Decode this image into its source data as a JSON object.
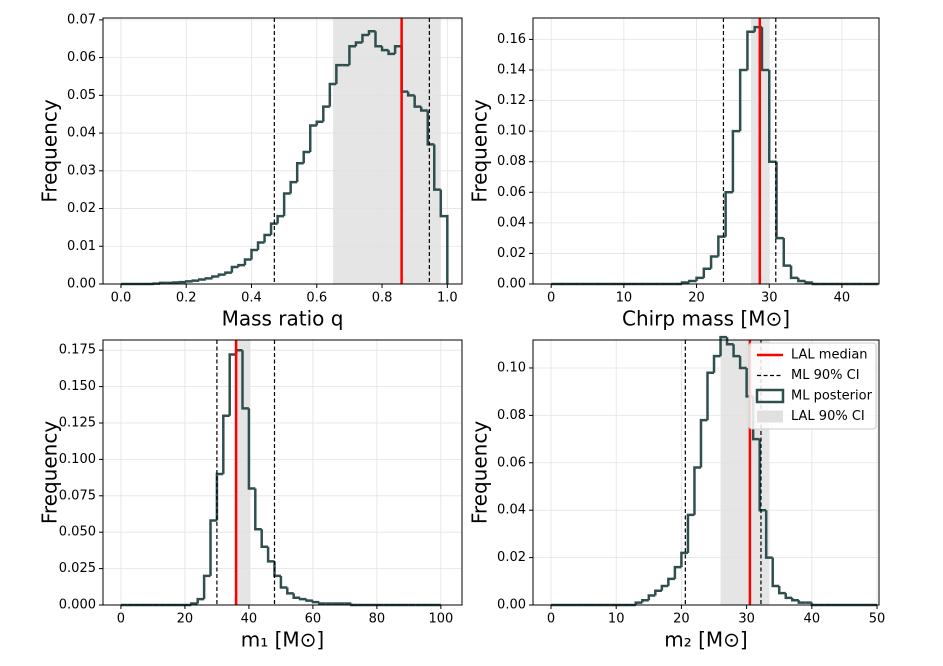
{
  "chart_data": [
    {
      "type": "histogram",
      "xlabel": "Mass ratio q",
      "ylabel": "Frequency",
      "bins": [
        0.0,
        0.02,
        0.04,
        0.06,
        0.08,
        0.1,
        0.12,
        0.14,
        0.16,
        0.18,
        0.2,
        0.22,
        0.24,
        0.26,
        0.28,
        0.3,
        0.32,
        0.34,
        0.36,
        0.38,
        0.4,
        0.42,
        0.44,
        0.46,
        0.48,
        0.5,
        0.52,
        0.54,
        0.56,
        0.58,
        0.6,
        0.62,
        0.64,
        0.66,
        0.68,
        0.7,
        0.72,
        0.74,
        0.76,
        0.78,
        0.8,
        0.82,
        0.84,
        0.86,
        0.88,
        0.9,
        0.92,
        0.94,
        0.96,
        0.98,
        1.0
      ],
      "counts": [
        0,
        0,
        0,
        0,
        0,
        0.0001,
        0.0003,
        0.0003,
        0.0004,
        0.0005,
        0.0007,
        0.0009,
        0.0012,
        0.0015,
        0.002,
        0.0025,
        0.003,
        0.0045,
        0.005,
        0.0065,
        0.009,
        0.011,
        0.013,
        0.016,
        0.018,
        0.024,
        0.027,
        0.032,
        0.035,
        0.042,
        0.043,
        0.047,
        0.053,
        0.058,
        0.058,
        0.063,
        0.064,
        0.066,
        0.067,
        0.063,
        0.062,
        0.061,
        0.063,
        0.051,
        0.05,
        0.047,
        0.046,
        0.037,
        0.025,
        0.018
      ],
      "color": "#2f4f4f",
      "median": 0.86,
      "median_color": "#ff0000",
      "ml_ci": [
        0.47,
        0.945
      ],
      "ml_ci_color": "#000000",
      "lal_ci": [
        0.65,
        0.98
      ],
      "lal_ci_color": "#e0e0e0",
      "xlim": [
        -0.055,
        1.045
      ],
      "ylim": [
        0,
        0.0705
      ],
      "xticks": [
        {
          "value": 0,
          "label": "0.0"
        },
        0.2,
        0.4,
        0.6,
        0.8,
        {
          "value": 1,
          "label": "1.0"
        }
      ],
      "yticks": [
        {
          "value": 0,
          "label": "0.00"
        },
        0.01,
        0.02,
        0.03,
        0.04,
        0.05,
        0.06,
        0.07
      ],
      "grid": true
    },
    {
      "type": "histogram",
      "xlabel": "Chirp mass [M⊙]",
      "ylabel": "Frequency",
      "bins": [
        0,
        1,
        2,
        3,
        4,
        5,
        6,
        7,
        8,
        9,
        10,
        11,
        12,
        13,
        14,
        15,
        16,
        17,
        18,
        19,
        20,
        21,
        22,
        23,
        24,
        25,
        26,
        27,
        28,
        29,
        30,
        31,
        32,
        33,
        34,
        35,
        36,
        37,
        38,
        39,
        40,
        41,
        42,
        43,
        44,
        45
      ],
      "counts": [
        0,
        0,
        0,
        0,
        0,
        0,
        0,
        0,
        0,
        0,
        0,
        0,
        0,
        0,
        0,
        0,
        0,
        0,
        0.001,
        0.002,
        0.004,
        0.01,
        0.018,
        0.031,
        0.06,
        0.1,
        0.14,
        0.165,
        0.168,
        0.14,
        0.08,
        0.03,
        0.012,
        0.004,
        0.002,
        0.001,
        0,
        0,
        0,
        0,
        0,
        0,
        0,
        0,
        0
      ],
      "color": "#2f4f4f",
      "median": 28.7,
      "median_color": "#ff0000",
      "ml_ci": [
        23.7,
        30.9
      ],
      "ml_ci_color": "#000000",
      "lal_ci": [
        27.5,
        30
      ],
      "lal_ci_color": "#e0e0e0",
      "xlim": [
        -2.5,
        45.1
      ],
      "ylim": [
        0,
        0.174
      ],
      "xticks": [
        0,
        10,
        20,
        30,
        40
      ],
      "yticks": [
        {
          "value": 0,
          "label": "0.00"
        },
        0.02,
        0.04,
        0.06,
        0.08,
        {
          "value": 0.1,
          "label": "0.10"
        },
        0.12,
        0.14,
        0.16
      ],
      "grid": true
    },
    {
      "type": "histogram",
      "xlabel": "m₁ [M⊙]",
      "ylabel": "Frequency",
      "bins": [
        0,
        2,
        4,
        6,
        8,
        10,
        12,
        14,
        16,
        18,
        20,
        22,
        24,
        26,
        28,
        30,
        32,
        34,
        36,
        38,
        40,
        42,
        44,
        46,
        48,
        50,
        52,
        54,
        56,
        58,
        60,
        62,
        64,
        66,
        68,
        70,
        72,
        74,
        76,
        78,
        80,
        82,
        84,
        86,
        88,
        90,
        92,
        94,
        96,
        98,
        100
      ],
      "counts": [
        0,
        0,
        0,
        0,
        0,
        0,
        0,
        0,
        0,
        0,
        0,
        0.001,
        0.004,
        0.02,
        0.058,
        0.09,
        0.13,
        0.172,
        0.175,
        0.135,
        0.08,
        0.052,
        0.04,
        0.03,
        0.02,
        0.012,
        0.008,
        0.005,
        0.004,
        0.003,
        0.002,
        0.001,
        0.001,
        0.001,
        0.001,
        0.001,
        0,
        0,
        0,
        0,
        0,
        0,
        0,
        0,
        0,
        0,
        0,
        0,
        0,
        0
      ],
      "color": "#2f4f4f",
      "median": 36,
      "median_color": "#ff0000",
      "ml_ci": [
        30,
        48
      ],
      "ml_ci_color": "#000000",
      "lal_ci": [
        35.5,
        40.5
      ],
      "lal_ci_color": "#e0e0e0",
      "xlim": [
        -5.6,
        106.6
      ],
      "ylim": [
        0,
        0.182
      ],
      "xticks": [
        0,
        20,
        40,
        60,
        80,
        100
      ],
      "yticks": [
        {
          "value": 0,
          "label": "0.000"
        },
        0.025,
        {
          "value": 0.05,
          "label": "0.050"
        },
        0.075,
        {
          "value": 0.1,
          "label": "0.100"
        },
        0.125,
        {
          "value": 0.15,
          "label": "0.150"
        },
        0.175
      ],
      "grid": true
    },
    {
      "type": "histogram",
      "xlabel": "m₂ [M⊙]",
      "ylabel": "Frequency",
      "bins": [
        0,
        1,
        2,
        3,
        4,
        5,
        6,
        7,
        8,
        9,
        10,
        11,
        12,
        13,
        14,
        15,
        16,
        17,
        18,
        19,
        20,
        21,
        22,
        23,
        24,
        25,
        26,
        27,
        28,
        29,
        30,
        31,
        32,
        33,
        34,
        35,
        36,
        37,
        38,
        39,
        40,
        41,
        42,
        43,
        44,
        45,
        46,
        47,
        48,
        49,
        50
      ],
      "counts": [
        0,
        0,
        0,
        0,
        0,
        0,
        0,
        0,
        0,
        0,
        0,
        0,
        0,
        0.001,
        0.002,
        0.004,
        0.006,
        0.008,
        0.011,
        0.016,
        0.022,
        0.038,
        0.058,
        0.078,
        0.098,
        0.105,
        0.113,
        0.11,
        0.105,
        0.1,
        0.088,
        0.07,
        0.04,
        0.02,
        0.008,
        0.005,
        0.003,
        0.002,
        0.001,
        0.001,
        0,
        0,
        0,
        0,
        0,
        0,
        0,
        0,
        0,
        0
      ],
      "color": "#2f4f4f",
      "median": 30.5,
      "median_color": "#ff0000",
      "ml_ci": [
        20.6,
        32.2
      ],
      "ml_ci_color": "#000000",
      "lal_ci": [
        26,
        33.5
      ],
      "lal_ci_color": "#e0e0e0",
      "xlim": [
        -2.76,
        50.3
      ],
      "ylim": [
        0,
        0.1118
      ],
      "xticks": [
        0,
        10,
        20,
        30,
        40,
        50
      ],
      "yticks": [
        {
          "value": 0,
          "label": "0.00"
        },
        0.02,
        0.04,
        0.06,
        0.08,
        {
          "value": 0.1,
          "label": "0.10"
        }
      ],
      "grid": true,
      "legend": {
        "loc": "upper right",
        "median": "LAL median",
        "ml_ci": "ML 90% CI",
        "posterior": "ML posterior",
        "lal_ci": "LAL 90% CI"
      }
    }
  ]
}
